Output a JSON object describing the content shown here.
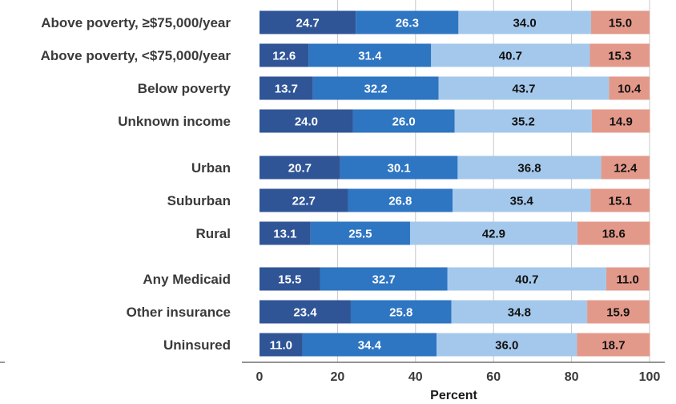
{
  "chart_data": {
    "type": "bar",
    "orientation": "horizontal",
    "stacked": true,
    "xlabel": "Percent",
    "xlim": [
      0,
      100
    ],
    "xticks": [
      0,
      20,
      40,
      60,
      80,
      100
    ],
    "grid": true,
    "categories": [
      "Above poverty, ≥$75,000/year",
      "Above poverty, <$75,000/year",
      "Below poverty",
      "Unknown income",
      "Urban",
      "Suburban",
      "Rural",
      "Any Medicaid",
      "Other insurance",
      "Uninsured"
    ],
    "groups": [
      [
        0,
        1,
        2,
        3
      ],
      [
        4,
        5,
        6
      ],
      [
        7,
        8,
        9
      ]
    ],
    "series": [
      {
        "color": "#2f5597",
        "label_color": "#ffffff",
        "values": [
          24.7,
          12.6,
          13.7,
          24.0,
          20.7,
          22.7,
          13.1,
          15.5,
          23.4,
          11.0
        ]
      },
      {
        "color": "#2e75c2",
        "label_color": "#ffffff",
        "values": [
          26.3,
          31.4,
          32.2,
          26.0,
          30.1,
          26.8,
          25.5,
          32.7,
          25.8,
          34.4
        ]
      },
      {
        "color": "#a4c8ec",
        "label_color": "#111111",
        "values": [
          34.0,
          40.7,
          43.7,
          35.2,
          36.8,
          35.4,
          42.9,
          40.7,
          34.8,
          36.0
        ]
      },
      {
        "color": "#e3998a",
        "label_color": "#111111",
        "values": [
          15.0,
          15.3,
          10.4,
          14.9,
          12.4,
          15.1,
          18.6,
          11.0,
          15.9,
          18.7
        ]
      }
    ]
  }
}
